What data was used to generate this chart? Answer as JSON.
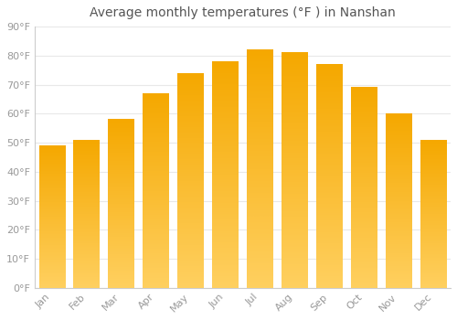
{
  "title": "Average monthly temperatures (°F ) in Nanshan",
  "months": [
    "Jan",
    "Feb",
    "Mar",
    "Apr",
    "May",
    "Jun",
    "Jul",
    "Aug",
    "Sep",
    "Oct",
    "Nov",
    "Dec"
  ],
  "values": [
    49,
    51,
    58,
    67,
    74,
    78,
    82,
    81,
    77,
    69,
    60,
    51
  ],
  "bar_color_top": "#F5A800",
  "bar_color_bottom": "#FFD060",
  "ylim": [
    0,
    90
  ],
  "yticks": [
    0,
    10,
    20,
    30,
    40,
    50,
    60,
    70,
    80,
    90
  ],
  "ytick_labels": [
    "0°F",
    "10°F",
    "20°F",
    "30°F",
    "40°F",
    "50°F",
    "60°F",
    "70°F",
    "80°F",
    "90°F"
  ],
  "background_color": "#FFFFFF",
  "grid_color": "#E8E8E8",
  "title_fontsize": 10,
  "tick_fontsize": 8,
  "tick_color": "#999999",
  "bar_width": 0.75,
  "figsize": [
    5.0,
    3.5
  ],
  "dpi": 100
}
